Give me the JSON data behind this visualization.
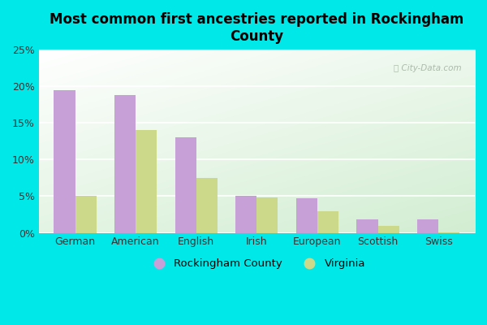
{
  "title": "Most common first ancestries reported in Rockingham\nCounty",
  "categories": [
    "German",
    "American",
    "English",
    "Irish",
    "European",
    "Scottish",
    "Swiss"
  ],
  "rockingham": [
    19.5,
    18.8,
    13.0,
    5.0,
    4.7,
    1.8,
    1.8
  ],
  "virginia": [
    5.0,
    14.0,
    7.5,
    4.8,
    3.0,
    0.9,
    0.1
  ],
  "rockingham_color": "#c8a0d8",
  "virginia_color": "#ccd98a",
  "bg_outer": "#00e8e8",
  "ylim": [
    0,
    25
  ],
  "yticks": [
    0,
    5,
    10,
    15,
    20,
    25
  ],
  "ytick_labels": [
    "0%",
    "5%",
    "10%",
    "15%",
    "20%",
    "25%"
  ],
  "legend_rockingham": "Rockingham County",
  "legend_virginia": "Virginia",
  "bar_width": 0.35,
  "watermark": "City-Data.com",
  "grid_color": "#ccddcc",
  "title_fontsize": 12,
  "tick_fontsize": 9
}
